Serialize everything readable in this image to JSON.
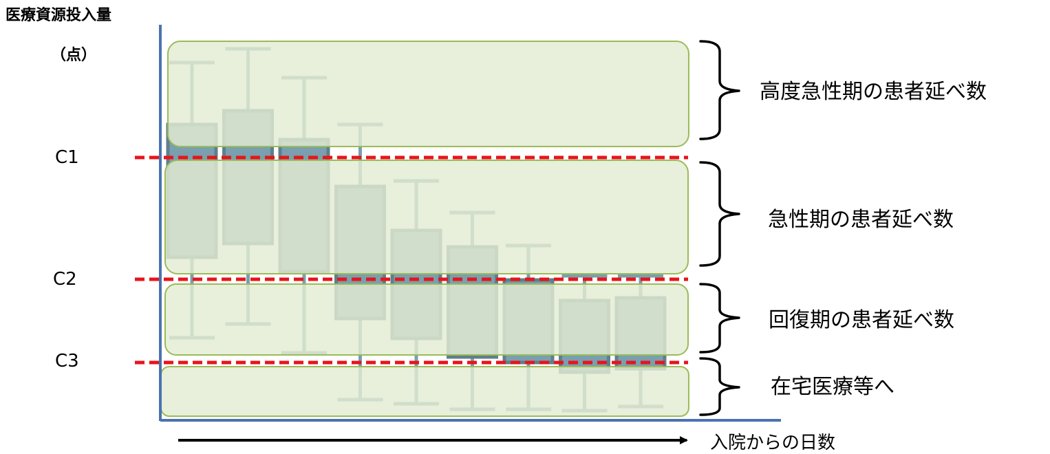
{
  "axis": {
    "y_label": "医療資源投入量",
    "y_unit": "（点）",
    "x_label": "入院からの日数"
  },
  "thresholds": [
    "C1",
    "C2",
    "C3"
  ],
  "categories": [
    "高度急性期の患者延べ数",
    "急性期の患者延べ数",
    "回復期の患者延べ数",
    "在宅医療等へ"
  ],
  "colors": {
    "axis": "#4a73b0",
    "box_fill": "#7a9fae",
    "box_stroke": "#5f7f8c",
    "whisker": "#7a9fae",
    "zone_fill": "#e3ebd2",
    "zone_stroke": "#9bbb59",
    "threshold_line": "#e8141c",
    "arrow": "#000000"
  },
  "chart_data": {
    "type": "box",
    "note_units": "relative resource level (0 = axis baseline), boxes ordered by days since admission",
    "threshold_levels": {
      "C1": 380,
      "C2": 203,
      "C3": 82
    },
    "boxes": [
      {
        "whisker_high": 518,
        "box_high": 428,
        "box_low": 235,
        "whisker_low": 118
      },
      {
        "whisker_high": 538,
        "box_high": 448,
        "box_low": 255,
        "whisker_low": 138
      },
      {
        "whisker_high": 496,
        "box_high": 406,
        "box_low": 214,
        "whisker_low": 96
      },
      {
        "whisker_high": 428,
        "box_high": 338,
        "box_low": 146,
        "whisker_low": 28
      },
      {
        "whisker_high": 346,
        "box_high": 274,
        "box_low": 117,
        "whisker_low": 22
      },
      {
        "whisker_high": 300,
        "box_high": 250,
        "box_low": 90,
        "whisker_low": 14
      },
      {
        "whisker_high": 252,
        "box_high": 202,
        "box_low": 82,
        "whisker_low": 14
      },
      {
        "whisker_high": 208,
        "box_high": 172,
        "box_low": 68,
        "whisker_low": 12
      },
      {
        "whisker_high": 208,
        "box_high": 176,
        "box_low": 73,
        "whisker_low": 18
      }
    ]
  }
}
